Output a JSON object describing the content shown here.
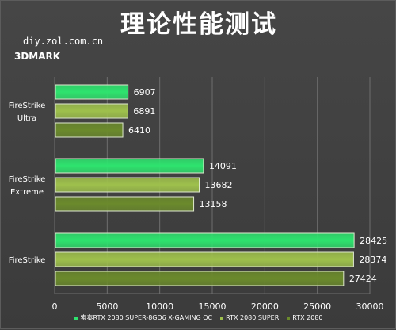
{
  "title": "理论性能测试",
  "watermark": "diy.zol.com.cn",
  "subtitle": "3DMARK",
  "colors": {
    "background": "#414141",
    "grid": "#6e6e6e",
    "axis_label": "#ffffff"
  },
  "chart_data": {
    "type": "bar",
    "orientation": "horizontal",
    "categories": [
      "FireStrike Ultra",
      "FireStrike Extreme",
      "FireStrike"
    ],
    "category_label_lines": [
      [
        "FireStrike",
        "Ultra"
      ],
      [
        "FireStrike",
        "Extreme"
      ],
      [
        "FireStrike"
      ]
    ],
    "series": [
      {
        "name": "索泰RTX 2080 SUPER-8GD6 X-GAMING OC",
        "values": [
          6907,
          14091,
          28425
        ],
        "color": "#2ee36e"
      },
      {
        "name": "RTX 2080 SUPER",
        "values": [
          6891,
          13682,
          28374
        ],
        "color": "#9ec04c"
      },
      {
        "name": "RTX 2080",
        "values": [
          6410,
          13158,
          27424
        ],
        "color": "#6b8a2c"
      }
    ],
    "xlim": [
      0,
      30000
    ],
    "xticks": [
      0,
      5000,
      10000,
      15000,
      20000,
      25000,
      30000
    ],
    "grid": true,
    "legend_position": "bottom"
  }
}
